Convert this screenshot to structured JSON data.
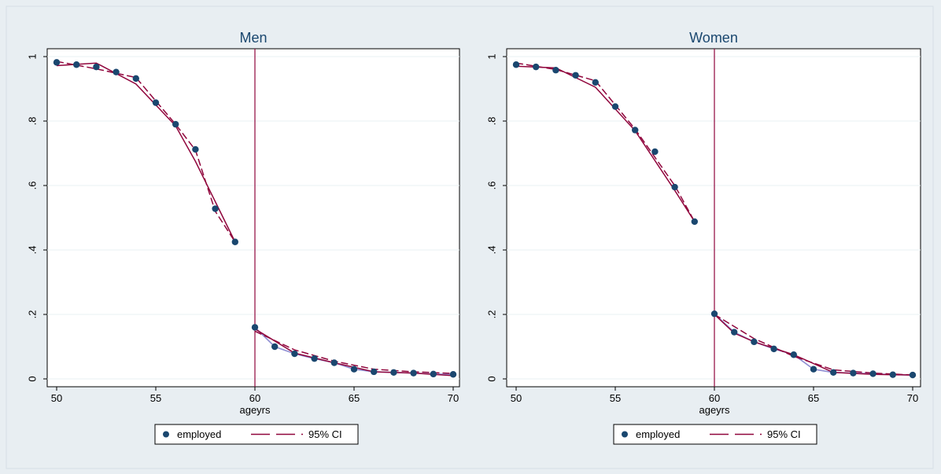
{
  "chart_data": [
    {
      "type": "scatter",
      "title": "Men",
      "xlabel": "ageyrs",
      "ylabel": "",
      "xlim": [
        50,
        70
      ],
      "ylim": [
        0,
        1
      ],
      "xticks": [
        "50",
        "55",
        "60",
        "65",
        "70"
      ],
      "yticks": [
        "0",
        ".2",
        ".4",
        ".6",
        ".8",
        "1"
      ],
      "cutoff": 60,
      "grid": true,
      "legend_position": "bottom",
      "legend": [
        "employed",
        "95% CI"
      ],
      "series": [
        {
          "name": "employed",
          "x": [
            50,
            51,
            52,
            53,
            54,
            55,
            56,
            57,
            58,
            59,
            60,
            61,
            62,
            63,
            64,
            65,
            66,
            67,
            68,
            69,
            70
          ],
          "y": [
            0.982,
            0.975,
            0.968,
            0.952,
            0.932,
            0.857,
            0.79,
            0.712,
            0.528,
            0.425,
            0.16,
            0.1,
            0.078,
            0.063,
            0.05,
            0.03,
            0.022,
            0.02,
            0.018,
            0.015,
            0.014
          ]
        },
        {
          "name": "95% CI",
          "segments": [
            {
              "x": [
                50,
                52,
                54,
                56,
                57,
                58,
                59
              ],
              "y": [
                0.972,
                0.98,
                0.915,
                0.785,
                0.675,
                0.55,
                0.425
              ]
            },
            {
              "x": [
                50,
                52,
                54,
                56,
                57,
                58,
                59
              ],
              "y": [
                0.985,
                0.962,
                0.935,
                0.79,
                0.71,
                0.52,
                0.425
              ]
            },
            {
              "x": [
                60,
                62,
                64,
                66,
                68,
                70
              ],
              "y": [
                0.155,
                0.08,
                0.05,
                0.022,
                0.018,
                0.01
              ]
            },
            {
              "x": [
                60,
                62,
                64,
                66,
                68,
                70
              ],
              "y": [
                0.148,
                0.09,
                0.055,
                0.03,
                0.022,
                0.017
              ]
            }
          ]
        }
      ],
      "colors": {
        "points": "#1a476f",
        "ci": "#90053c",
        "fit": "#8f8fd3",
        "cutoff": "#90053c"
      }
    },
    {
      "type": "scatter",
      "title": "Women",
      "xlabel": "ageyrs",
      "ylabel": "",
      "xlim": [
        50,
        70
      ],
      "ylim": [
        0,
        1
      ],
      "xticks": [
        "50",
        "55",
        "60",
        "65",
        "70"
      ],
      "yticks": [
        "0",
        ".2",
        ".4",
        ".6",
        ".8",
        "1"
      ],
      "cutoff": 60,
      "grid": true,
      "legend_position": "bottom",
      "legend": [
        "employed",
        "95% CI"
      ],
      "series": [
        {
          "name": "employed",
          "x": [
            50,
            51,
            52,
            53,
            54,
            55,
            56,
            57,
            58,
            59,
            60,
            61,
            62,
            63,
            64,
            65,
            66,
            67,
            68,
            69,
            70
          ],
          "y": [
            0.975,
            0.968,
            0.958,
            0.942,
            0.92,
            0.845,
            0.772,
            0.705,
            0.595,
            0.488,
            0.202,
            0.145,
            0.115,
            0.093,
            0.075,
            0.03,
            0.02,
            0.018,
            0.016,
            0.013,
            0.012
          ]
        },
        {
          "name": "95% CI",
          "segments": [
            {
              "x": [
                50,
                52,
                54,
                56,
                58,
                59
              ],
              "y": [
                0.97,
                0.965,
                0.905,
                0.77,
                0.585,
                0.488
              ]
            },
            {
              "x": [
                50,
                52,
                54,
                56,
                58,
                59
              ],
              "y": [
                0.98,
                0.96,
                0.925,
                0.775,
                0.6,
                0.488
              ]
            },
            {
              "x": [
                60,
                61,
                62,
                64,
                66,
                68,
                70
              ],
              "y": [
                0.2,
                0.142,
                0.115,
                0.075,
                0.02,
                0.014,
                0.012
              ]
            },
            {
              "x": [
                60,
                62,
                64,
                66,
                68,
                70
              ],
              "y": [
                0.2,
                0.125,
                0.07,
                0.028,
                0.018,
                0.012
              ]
            }
          ]
        }
      ],
      "colors": {
        "points": "#1a476f",
        "ci": "#90053c",
        "fit": "#8f8fd3",
        "cutoff": "#90053c"
      }
    }
  ]
}
